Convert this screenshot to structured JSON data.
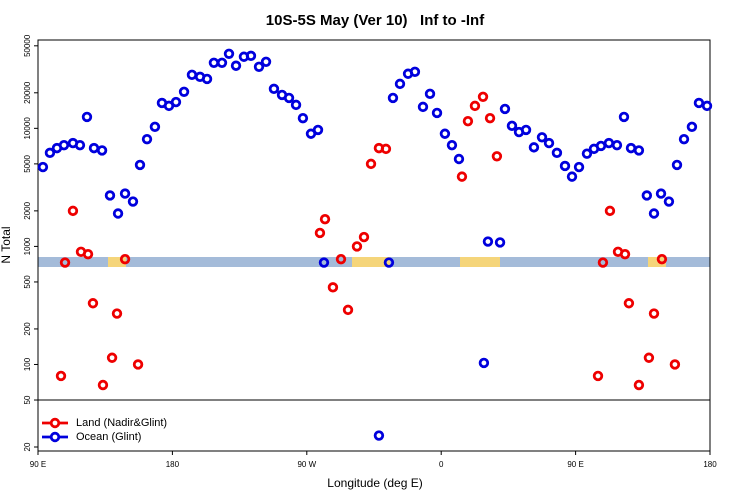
{
  "chart_data": {
    "type": "scatter",
    "title": "10S-5S May (Ver 10)   Inf to -Inf",
    "x_label": "Longitude (deg E)",
    "y_label": "N Total",
    "log_y": true,
    "xlim": [
      90,
      540
    ],
    "xticks": [
      {
        "value": 90,
        "label": "90 E"
      },
      180,
      {
        "value": 270,
        "label": "90 W"
      },
      {
        "value": 360,
        "label": "0"
      },
      {
        "value": 450,
        "label": "90 E"
      },
      {
        "value": 540,
        "label": "180"
      }
    ],
    "ylim": [
      18.5,
      56000
    ],
    "yticks": [
      20,
      50,
      100,
      200,
      500,
      1000,
      2000,
      5000,
      10000,
      20000,
      50000
    ],
    "hline": 50,
    "legend": "bottom-left",
    "series": [
      {
        "name": "Land (Nadir&Glint)",
        "color": "#ee0000",
        "x": [
          105.4,
          108.1,
          113.4,
          118.8,
          123.5,
          126.8,
          133.5,
          139.6,
          142.9,
          148.3,
          157.0,
          278.8,
          282.2,
          287.5,
          292.9,
          297.6,
          303.6,
          308.3,
          313.0,
          318.3,
          323.0,
          373.9,
          377.9,
          382.6,
          388.0,
          392.7,
          397.3,
          465.0,
          468.3,
          473.0,
          478.4,
          483.1,
          485.7,
          492.4,
          499.1,
          502.5,
          507.8,
          516.5
        ],
        "values": [
          80,
          730,
          2000,
          900,
          860,
          330,
          67,
          114,
          270,
          780,
          100,
          1300,
          1700,
          450,
          780,
          290,
          1000,
          1200,
          5000,
          6800,
          6700,
          3900,
          11500,
          15500,
          18500,
          12200,
          5800,
          80,
          730,
          2000,
          900,
          860,
          330,
          67,
          114,
          270,
          780,
          100
        ]
      },
      {
        "name": "Ocean (Glint)",
        "color": "#0000dd",
        "x": [
          93.3,
          98.0,
          102.7,
          107.4,
          113.4,
          118.1,
          122.8,
          127.5,
          132.9,
          138.2,
          143.6,
          148.3,
          153.6,
          158.3,
          163.0,
          168.3,
          173.0,
          177.7,
          182.4,
          187.8,
          193.1,
          198.5,
          203.2,
          207.8,
          213.2,
          217.9,
          222.6,
          227.9,
          232.6,
          238.0,
          242.7,
          248.0,
          253.4,
          258.1,
          262.8,
          267.4,
          272.8,
          277.5,
          281.5,
          325.0,
          327.7,
          332.4,
          337.8,
          342.4,
          347.8,
          352.5,
          357.2,
          362.5,
          367.2,
          371.9,
          388.6,
          391.3,
          399.4,
          402.7,
          407.4,
          412.1,
          416.8,
          422.1,
          427.5,
          432.2,
          437.5,
          442.9,
          447.6,
          452.3,
          457.6,
          462.3,
          467.0,
          472.3,
          477.7,
          482.4,
          487.1,
          492.4,
          497.7,
          502.5,
          507.2,
          512.5,
          517.9,
          522.6,
          527.9,
          532.6,
          538.0,
          318.3
        ],
        "values": [
          4700,
          6200,
          6800,
          7200,
          7500,
          7200,
          12500,
          6800,
          6500,
          2700,
          1900,
          2800,
          2400,
          4900,
          8100,
          10300,
          16400,
          15500,
          16700,
          20400,
          28400,
          27300,
          26200,
          35900,
          35900,
          42800,
          33900,
          40400,
          41100,
          33200,
          36600,
          21600,
          19200,
          18100,
          15800,
          12200,
          9000,
          9700,
          730,
          730,
          18100,
          23800,
          29000,
          30100,
          15200,
          19600,
          13500,
          9000,
          7200,
          5500,
          103,
          1100,
          1080,
          14600,
          10500,
          9300,
          9700,
          6900,
          8400,
          7500,
          6200,
          4800,
          3900,
          4700,
          6100,
          6700,
          7100,
          7500,
          7200,
          12500,
          6800,
          6500,
          2700,
          1900,
          2800,
          2400,
          4900,
          8100,
          10300,
          16400,
          15500,
          25
        ]
      }
    ]
  }
}
